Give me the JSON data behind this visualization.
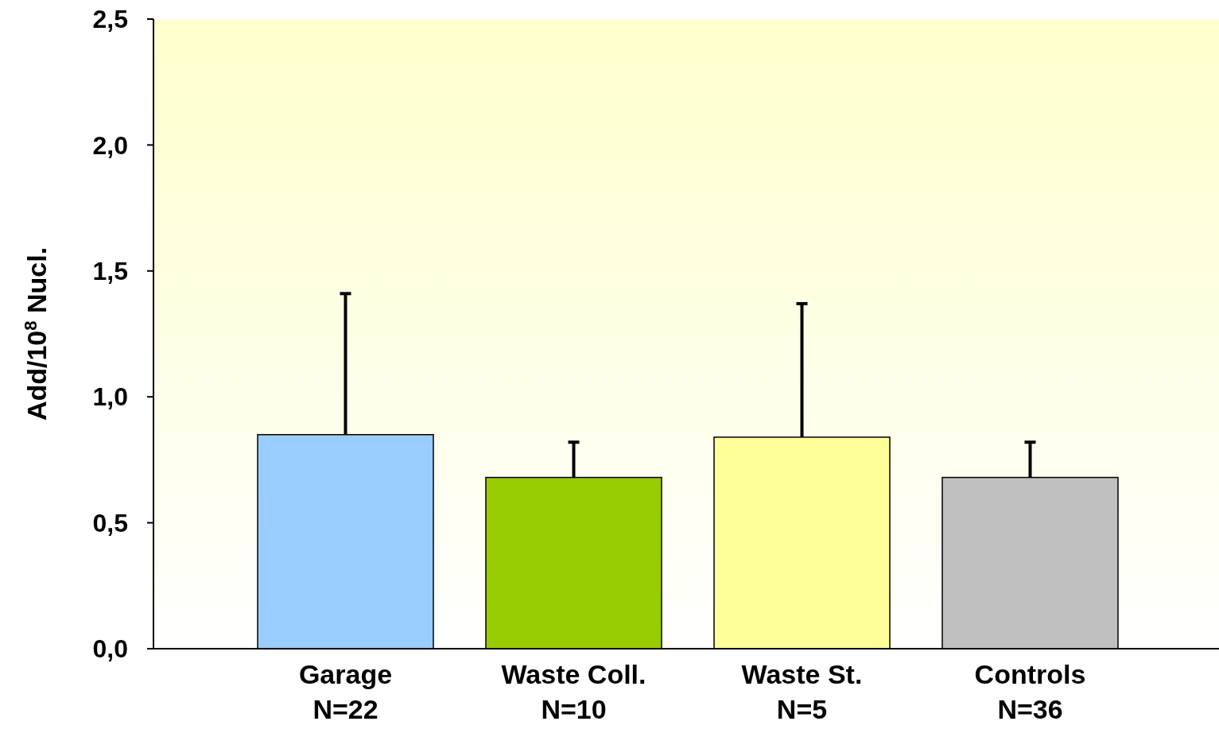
{
  "chart_data": {
    "type": "bar",
    "ylabel": "Add/10$^{8}$ Nucl.",
    "categories": [
      "Garage\nN=22",
      "Waste Coll.\nN=10",
      "Waste St.\nN=5",
      "Controls\nN=36"
    ],
    "values": [
      0.85,
      0.68,
      0.84,
      0.68
    ],
    "colors": [
      "#99ccff",
      "#99cc00",
      "#ffff99",
      "#c0c0c0"
    ],
    "errors": [
      [
        0.85,
        1.41
      ],
      [
        0.68,
        0.82
      ],
      [
        0.84,
        1.37
      ],
      [
        0.68,
        0.82
      ]
    ],
    "ylim": [
      0,
      2.5
    ],
    "yticks": [
      {
        "value": 0,
        "label": "0,0"
      },
      {
        "value": 0.5,
        "label": "0,5"
      },
      {
        "value": 1,
        "label": "1,0"
      },
      {
        "value": 1.5,
        "label": "1,5"
      },
      {
        "value": 2,
        "label": "2,0"
      },
      {
        "value": 2.5,
        "label": "2,5"
      }
    ],
    "grid": false
  }
}
